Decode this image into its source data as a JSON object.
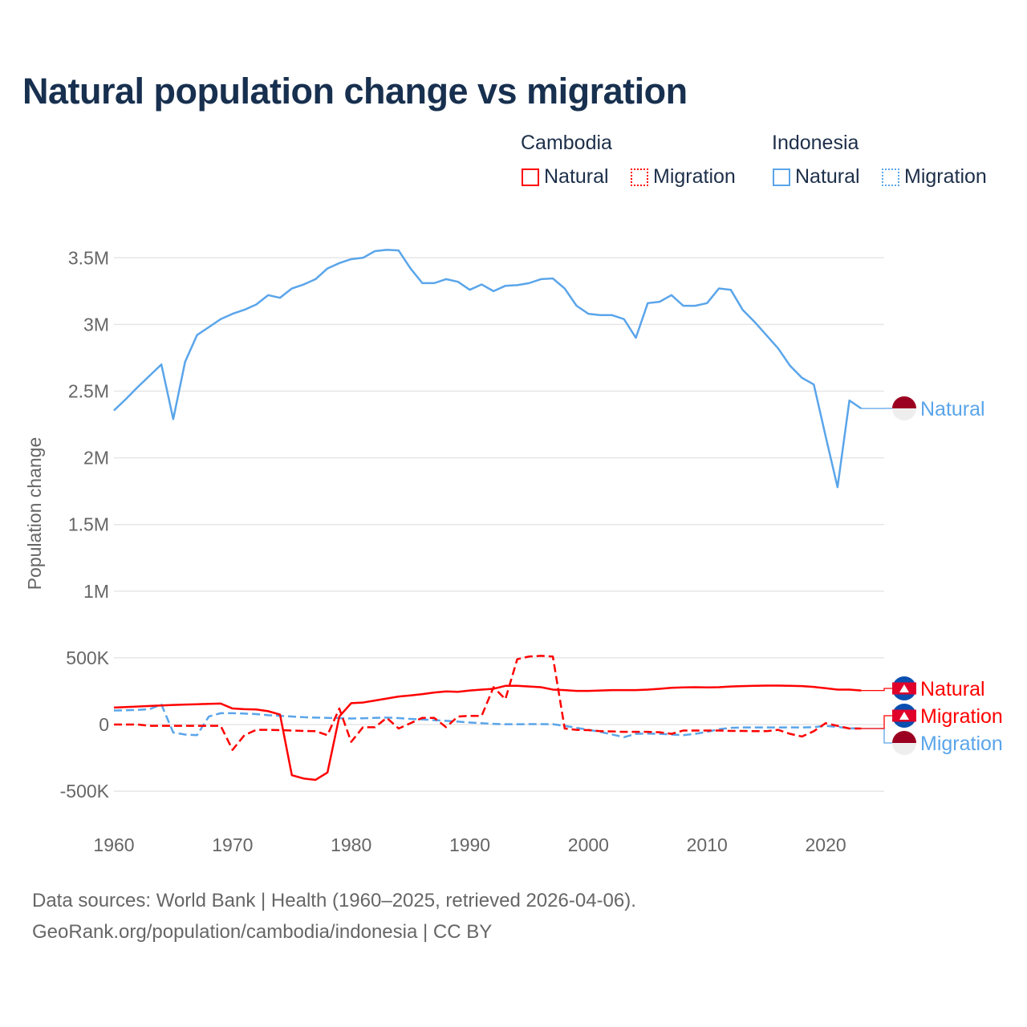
{
  "title": "Natural population change vs migration",
  "legend": {
    "groups": [
      {
        "name": "Cambodia",
        "color": "#ff0000",
        "items": [
          "Natural",
          "Migration"
        ]
      },
      {
        "name": "Indonesia",
        "color": "#5aa5ea",
        "items": [
          "Natural",
          "Migration"
        ]
      }
    ]
  },
  "footer": {
    "line1": "Data sources: World Bank | Health (1960–2025, retrieved 2026-04-06).",
    "line2": "GeoRank.org/population/cambodia/indonesia | CC BY"
  },
  "chart_data": {
    "type": "line",
    "title": "Natural population change vs migration",
    "xlabel": "",
    "ylabel": "Population change",
    "xlim": [
      1960,
      2025
    ],
    "ylim": [
      -700000,
      3700000
    ],
    "x_ticks": [
      1960,
      1970,
      1980,
      1990,
      2000,
      2010,
      2020
    ],
    "x_tick_labels": [
      "1960",
      "1970",
      "1980",
      "1990",
      "2000",
      "2010",
      "2020"
    ],
    "y_ticks": [
      -500000,
      0,
      500000,
      1000000,
      1500000,
      2000000,
      2500000,
      3000000,
      3500000
    ],
    "y_tick_labels": [
      "-500K",
      "0",
      "500K",
      "1M",
      "1.5M",
      "2M",
      "2.5M",
      "3M",
      "3.5M"
    ],
    "grid": true,
    "x": [
      1960,
      1961,
      1962,
      1963,
      1964,
      1965,
      1966,
      1967,
      1968,
      1969,
      1970,
      1971,
      1972,
      1973,
      1974,
      1975,
      1976,
      1977,
      1978,
      1979,
      1980,
      1981,
      1982,
      1983,
      1984,
      1985,
      1986,
      1987,
      1988,
      1989,
      1990,
      1991,
      1992,
      1993,
      1994,
      1995,
      1996,
      1997,
      1998,
      1999,
      2000,
      2001,
      2002,
      2003,
      2004,
      2005,
      2006,
      2007,
      2008,
      2009,
      2010,
      2011,
      2012,
      2013,
      2014,
      2015,
      2016,
      2017,
      2018,
      2019,
      2020,
      2021,
      2022,
      2023
    ],
    "series": [
      {
        "name": "Indonesia Natural",
        "country": "Indonesia",
        "kind": "Natural",
        "color": "#5aa5ea",
        "dash": "solid",
        "end_label": "Natural",
        "values": [
          2355000,
          2440000,
          2530000,
          2615000,
          2700000,
          2290000,
          2720000,
          2920000,
          2980000,
          3040000,
          3080000,
          3110000,
          3150000,
          3220000,
          3200000,
          3270000,
          3300000,
          3340000,
          3420000,
          3460000,
          3490000,
          3500000,
          3550000,
          3560000,
          3555000,
          3420000,
          3310000,
          3310000,
          3340000,
          3320000,
          3260000,
          3300000,
          3250000,
          3290000,
          3295000,
          3310000,
          3340000,
          3345000,
          3270000,
          3140000,
          3080000,
          3070000,
          3070000,
          3040000,
          2900000,
          3160000,
          3170000,
          3220000,
          3140000,
          3140000,
          3160000,
          3270000,
          3260000,
          3110000,
          3020000,
          2920000,
          2820000,
          2690000,
          2600000,
          2550000,
          2160000,
          1780000,
          2430000,
          2370000
        ]
      },
      {
        "name": "Indonesia Migration",
        "country": "Indonesia",
        "kind": "Migration",
        "color": "#5aa5ea",
        "dash": "dashed",
        "end_label": "Migration",
        "values": [
          105000,
          107000,
          110000,
          115000,
          150000,
          -60000,
          -75000,
          -80000,
          60000,
          85000,
          85000,
          82000,
          78000,
          70000,
          65000,
          60000,
          55000,
          52000,
          50000,
          48000,
          45000,
          47000,
          50000,
          52000,
          48000,
          42000,
          38000,
          32000,
          28000,
          22000,
          15000,
          10000,
          5000,
          2000,
          2000,
          3000,
          3000,
          2000,
          -10000,
          -25000,
          -40000,
          -55000,
          -75000,
          -95000,
          -70000,
          -68000,
          -70000,
          -75000,
          -80000,
          -70000,
          -55000,
          -35000,
          -25000,
          -22000,
          -22000,
          -22000,
          -22000,
          -22000,
          -22000,
          -20000,
          -10000,
          -18000,
          -28000,
          -30000
        ]
      },
      {
        "name": "Cambodia Natural",
        "country": "Cambodia",
        "kind": "Natural",
        "color": "#ff0000",
        "dash": "solid",
        "end_label": "Natural",
        "values": [
          127000,
          131000,
          135000,
          139000,
          143000,
          147000,
          150000,
          152000,
          155000,
          157000,
          120000,
          115000,
          113000,
          100000,
          75000,
          -380000,
          -405000,
          -415000,
          -360000,
          60000,
          160000,
          165000,
          180000,
          195000,
          210000,
          218000,
          228000,
          240000,
          248000,
          245000,
          255000,
          262000,
          268000,
          290000,
          290000,
          285000,
          280000,
          262000,
          258000,
          252000,
          252000,
          255000,
          258000,
          258000,
          258000,
          262000,
          268000,
          275000,
          278000,
          280000,
          278000,
          280000,
          285000,
          288000,
          290000,
          292000,
          292000,
          290000,
          288000,
          282000,
          272000,
          262000,
          262000,
          255000
        ]
      },
      {
        "name": "Cambodia Migration",
        "country": "Cambodia",
        "kind": "Migration",
        "color": "#ff0000",
        "dash": "dashed",
        "end_label": "Migration",
        "values": [
          0,
          0,
          0,
          -10000,
          -10000,
          -10000,
          -10000,
          -10000,
          -10000,
          -10000,
          -190000,
          -80000,
          -40000,
          -40000,
          -42000,
          -45000,
          -48000,
          -50000,
          -80000,
          120000,
          -130000,
          -20000,
          -20000,
          50000,
          -30000,
          10000,
          50000,
          50000,
          -20000,
          60000,
          65000,
          65000,
          280000,
          190000,
          490000,
          510000,
          515000,
          510000,
          -30000,
          -40000,
          -42000,
          -50000,
          -52000,
          -55000,
          -55000,
          -55000,
          -58000,
          -70000,
          -45000,
          -45000,
          -45000,
          -45000,
          -48000,
          -48000,
          -50000,
          -50000,
          -40000,
          -70000,
          -90000,
          -50000,
          10000,
          -10000,
          -30000,
          -30000
        ]
      }
    ]
  }
}
